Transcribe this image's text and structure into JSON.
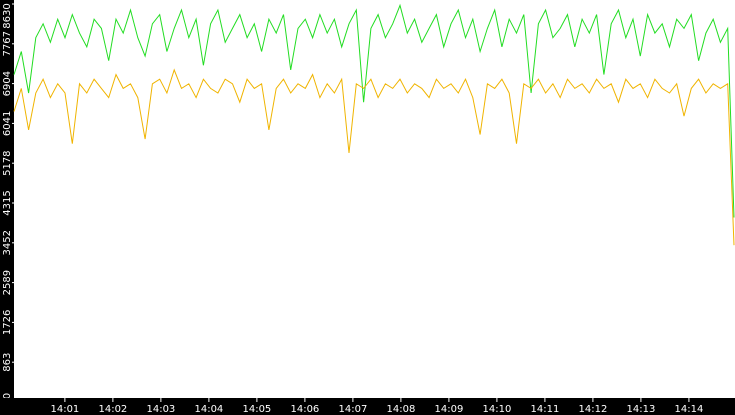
{
  "chart_data": {
    "type": "line",
    "ylim": [
      0,
      8630
    ],
    "yticks": [
      0,
      863,
      1726,
      2589,
      3452,
      4315,
      5178,
      6041,
      6904,
      7767,
      8630
    ],
    "xlim": [
      -0.06,
      14.96
    ],
    "xticks": [
      {
        "value": 1,
        "label": "14:01"
      },
      {
        "value": 2,
        "label": "14:02"
      },
      {
        "value": 3,
        "label": "14:03"
      },
      {
        "value": 4,
        "label": "14:04"
      },
      {
        "value": 5,
        "label": "14:05"
      },
      {
        "value": 6,
        "label": "14:06"
      },
      {
        "value": 7,
        "label": "14:07"
      },
      {
        "value": 8,
        "label": "14:08"
      },
      {
        "value": 9,
        "label": "14:09"
      },
      {
        "value": 10,
        "label": "14:10"
      },
      {
        "value": 11,
        "label": "14:11"
      },
      {
        "value": 12,
        "label": "14:12"
      },
      {
        "value": 13,
        "label": "14:13"
      },
      {
        "value": 14,
        "label": "14:14"
      }
    ],
    "series": [
      {
        "color": "#22dd22",
        "values": [
          7100,
          7600,
          6700,
          7900,
          8200,
          7800,
          8300,
          7900,
          8400,
          8000,
          7700,
          8300,
          8100,
          7400,
          8300,
          8000,
          8500,
          7900,
          7500,
          8200,
          8400,
          7600,
          8100,
          8500,
          7900,
          8300,
          7300,
          8200,
          8500,
          7800,
          8100,
          8400,
          7900,
          8200,
          7600,
          8300,
          8000,
          8400,
          7200,
          8100,
          8300,
          7900,
          8400,
          8000,
          8300,
          7700,
          8200,
          8500,
          6500,
          8100,
          8400,
          7900,
          8200,
          8600,
          8000,
          8300,
          7800,
          8100,
          8400,
          7700,
          8200,
          8500,
          7900,
          8300,
          7600,
          8100,
          8500,
          7700,
          8300,
          8000,
          8400,
          6700,
          8200,
          8500,
          7900,
          8100,
          8400,
          7700,
          8300,
          8000,
          8400,
          7100,
          8200,
          8500,
          7900,
          8300,
          7500,
          8400,
          8000,
          8200,
          7700,
          8300,
          8100,
          8400,
          7400,
          8000,
          8300,
          7800,
          8100,
          4000
        ]
      },
      {
        "color": "#f0b400",
        "values": [
          6300,
          6800,
          5900,
          6700,
          7000,
          6600,
          6900,
          6700,
          5600,
          6900,
          6700,
          7000,
          6800,
          6600,
          7100,
          6800,
          6900,
          6600,
          5700,
          6900,
          7000,
          6700,
          7200,
          6800,
          6900,
          6600,
          7000,
          6800,
          6700,
          7000,
          6900,
          6500,
          7000,
          6800,
          6900,
          5900,
          6800,
          7000,
          6700,
          6900,
          6800,
          7100,
          6600,
          6900,
          6700,
          7000,
          5400,
          6900,
          6800,
          7000,
          6600,
          6900,
          6800,
          7000,
          6700,
          6900,
          6800,
          6600,
          7000,
          6800,
          6900,
          6700,
          7000,
          6600,
          5800,
          6900,
          6800,
          7000,
          6700,
          5600,
          6900,
          6800,
          7000,
          6700,
          6900,
          6600,
          7000,
          6800,
          6900,
          6700,
          7000,
          6800,
          6900,
          6500,
          7000,
          6800,
          6900,
          6600,
          7000,
          6800,
          6700,
          6900,
          6200,
          6800,
          7000,
          6700,
          6900,
          6800,
          6900,
          3400
        ]
      }
    ]
  }
}
